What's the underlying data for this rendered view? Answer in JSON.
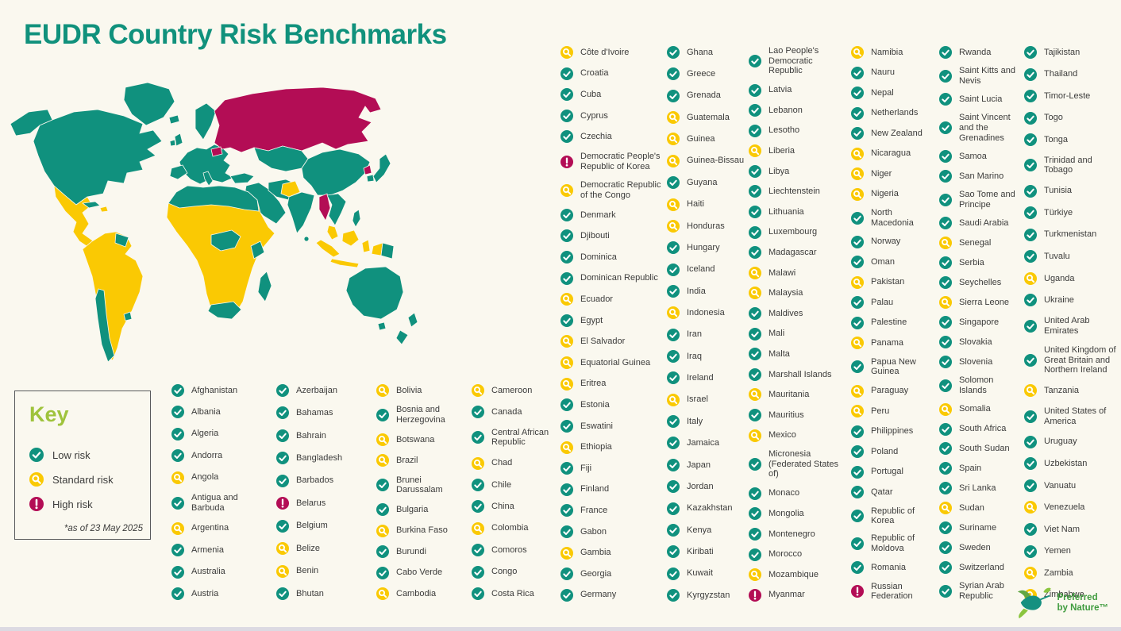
{
  "title": "EUDR Country Risk Benchmarks",
  "key": {
    "title": "Key",
    "items": [
      {
        "label": "Low risk",
        "risk": "low"
      },
      {
        "label": "Standard risk",
        "risk": "standard"
      },
      {
        "label": "High risk",
        "risk": "high"
      }
    ],
    "note": "*as of 23 May 2025"
  },
  "logo": {
    "line1": "Preferred",
    "line2": "by Nature™"
  },
  "colors": {
    "background": "#faf8ef",
    "title": "#10917c",
    "key_title": "#9fc33c",
    "low": "#10917e",
    "standard": "#fac903",
    "high": "#b30d55"
  },
  "chart_data": {
    "type": "choropleth_map",
    "title": "EUDR Country Risk Benchmarks",
    "note": "*as of 23 May 2025",
    "legend": [
      "Low risk",
      "Standard risk",
      "High risk"
    ],
    "legend_position": "bottom-left",
    "risk_colors": {
      "low": "#10917e",
      "standard": "#fac903",
      "high": "#b30d55"
    },
    "left_columns": [
      [
        {
          "name": "Afghanistan",
          "risk": "low"
        },
        {
          "name": "Albania",
          "risk": "low"
        },
        {
          "name": "Algeria",
          "risk": "low"
        },
        {
          "name": "Andorra",
          "risk": "low"
        },
        {
          "name": "Angola",
          "risk": "standard"
        },
        {
          "name": "Antigua and Barbuda",
          "risk": "low"
        },
        {
          "name": "Argentina",
          "risk": "standard"
        },
        {
          "name": "Armenia",
          "risk": "low"
        },
        {
          "name": "Australia",
          "risk": "low"
        },
        {
          "name": "Austria",
          "risk": "low"
        }
      ],
      [
        {
          "name": "Azerbaijan",
          "risk": "low"
        },
        {
          "name": "Bahamas",
          "risk": "low"
        },
        {
          "name": "Bahrain",
          "risk": "low"
        },
        {
          "name": "Bangladesh",
          "risk": "low"
        },
        {
          "name": "Barbados",
          "risk": "low"
        },
        {
          "name": "Belarus",
          "risk": "high"
        },
        {
          "name": "Belgium",
          "risk": "low"
        },
        {
          "name": "Belize",
          "risk": "standard"
        },
        {
          "name": "Benin",
          "risk": "standard"
        },
        {
          "name": "Bhutan",
          "risk": "low"
        }
      ],
      [
        {
          "name": "Bolivia",
          "risk": "standard"
        },
        {
          "name": "Bosnia and Herzegovina",
          "risk": "low"
        },
        {
          "name": "Botswana",
          "risk": "standard"
        },
        {
          "name": "Brazil",
          "risk": "standard"
        },
        {
          "name": "Brunei Darussalam",
          "risk": "low"
        },
        {
          "name": "Bulgaria",
          "risk": "low"
        },
        {
          "name": "Burkina Faso",
          "risk": "standard"
        },
        {
          "name": "Burundi",
          "risk": "low"
        },
        {
          "name": "Cabo Verde",
          "risk": "low"
        },
        {
          "name": "Cambodia",
          "risk": "standard"
        }
      ],
      [
        {
          "name": "Cameroon",
          "risk": "standard"
        },
        {
          "name": "Canada",
          "risk": "low"
        },
        {
          "name": "Central African Republic",
          "risk": "low"
        },
        {
          "name": "Chad",
          "risk": "standard"
        },
        {
          "name": "Chile",
          "risk": "low"
        },
        {
          "name": "China",
          "risk": "low"
        },
        {
          "name": "Colombia",
          "risk": "standard"
        },
        {
          "name": "Comoros",
          "risk": "low"
        },
        {
          "name": "Congo",
          "risk": "low"
        },
        {
          "name": "Costa Rica",
          "risk": "low"
        }
      ]
    ],
    "right_columns": [
      [
        {
          "name": "Côte d'Ivoire",
          "risk": "standard"
        },
        {
          "name": "Croatia",
          "risk": "low"
        },
        {
          "name": "Cuba",
          "risk": "low"
        },
        {
          "name": "Cyprus",
          "risk": "low"
        },
        {
          "name": "Czechia",
          "risk": "low"
        },
        {
          "name": "Democratic People's Republic of Korea",
          "risk": "high"
        },
        {
          "name": "Democratic Republic of the Congo",
          "risk": "standard"
        },
        {
          "name": "Denmark",
          "risk": "low"
        },
        {
          "name": "Djibouti",
          "risk": "low"
        },
        {
          "name": "Dominica",
          "risk": "low"
        },
        {
          "name": "Dominican Republic",
          "risk": "low"
        },
        {
          "name": "Ecuador",
          "risk": "standard"
        },
        {
          "name": "Egypt",
          "risk": "low"
        },
        {
          "name": "El Salvador",
          "risk": "standard"
        },
        {
          "name": "Equatorial Guinea",
          "risk": "standard"
        },
        {
          "name": "Eritrea",
          "risk": "standard"
        },
        {
          "name": "Estonia",
          "risk": "low"
        },
        {
          "name": "Eswatini",
          "risk": "low"
        },
        {
          "name": "Ethiopia",
          "risk": "standard"
        },
        {
          "name": "Fiji",
          "risk": "low"
        },
        {
          "name": "Finland",
          "risk": "low"
        },
        {
          "name": "France",
          "risk": "low"
        },
        {
          "name": "Gabon",
          "risk": "low"
        },
        {
          "name": "Gambia",
          "risk": "standard"
        },
        {
          "name": "Georgia",
          "risk": "low"
        },
        {
          "name": "Germany",
          "risk": "low"
        }
      ],
      [
        {
          "name": "Ghana",
          "risk": "low"
        },
        {
          "name": "Greece",
          "risk": "low"
        },
        {
          "name": "Grenada",
          "risk": "low"
        },
        {
          "name": "Guatemala",
          "risk": "standard"
        },
        {
          "name": "Guinea",
          "risk": "standard"
        },
        {
          "name": "Guinea-Bissau",
          "risk": "standard"
        },
        {
          "name": "Guyana",
          "risk": "low"
        },
        {
          "name": "Haiti",
          "risk": "standard"
        },
        {
          "name": "Honduras",
          "risk": "standard"
        },
        {
          "name": "Hungary",
          "risk": "low"
        },
        {
          "name": "Iceland",
          "risk": "low"
        },
        {
          "name": "India",
          "risk": "low"
        },
        {
          "name": "Indonesia",
          "risk": "standard"
        },
        {
          "name": "Iran",
          "risk": "low"
        },
        {
          "name": "Iraq",
          "risk": "low"
        },
        {
          "name": "Ireland",
          "risk": "low"
        },
        {
          "name": "Israel",
          "risk": "standard"
        },
        {
          "name": "Italy",
          "risk": "low"
        },
        {
          "name": "Jamaica",
          "risk": "low"
        },
        {
          "name": "Japan",
          "risk": "low"
        },
        {
          "name": "Jordan",
          "risk": "low"
        },
        {
          "name": "Kazakhstan",
          "risk": "low"
        },
        {
          "name": "Kenya",
          "risk": "low"
        },
        {
          "name": "Kiribati",
          "risk": "low"
        },
        {
          "name": "Kuwait",
          "risk": "low"
        },
        {
          "name": "Kyrgyzstan",
          "risk": "low"
        }
      ],
      [
        {
          "name": "Lao People's Democratic Republic",
          "risk": "low"
        },
        {
          "name": "Latvia",
          "risk": "low"
        },
        {
          "name": "Lebanon",
          "risk": "low"
        },
        {
          "name": "Lesotho",
          "risk": "low"
        },
        {
          "name": "Liberia",
          "risk": "standard"
        },
        {
          "name": "Libya",
          "risk": "low"
        },
        {
          "name": "Liechtenstein",
          "risk": "low"
        },
        {
          "name": "Lithuania",
          "risk": "low"
        },
        {
          "name": "Luxembourg",
          "risk": "low"
        },
        {
          "name": "Madagascar",
          "risk": "low"
        },
        {
          "name": "Malawi",
          "risk": "standard"
        },
        {
          "name": "Malaysia",
          "risk": "standard"
        },
        {
          "name": "Maldives",
          "risk": "low"
        },
        {
          "name": "Mali",
          "risk": "low"
        },
        {
          "name": "Malta",
          "risk": "low"
        },
        {
          "name": "Marshall Islands",
          "risk": "low"
        },
        {
          "name": "Mauritania",
          "risk": "standard"
        },
        {
          "name": "Mauritius",
          "risk": "low"
        },
        {
          "name": "Mexico",
          "risk": "standard"
        },
        {
          "name": "Micronesia (Federated States of)",
          "risk": "low"
        },
        {
          "name": "Monaco",
          "risk": "low"
        },
        {
          "name": "Mongolia",
          "risk": "low"
        },
        {
          "name": "Montenegro",
          "risk": "low"
        },
        {
          "name": "Morocco",
          "risk": "low"
        },
        {
          "name": "Mozambique",
          "risk": "standard"
        },
        {
          "name": "Myanmar",
          "risk": "high"
        }
      ],
      [
        {
          "name": "Namibia",
          "risk": "standard"
        },
        {
          "name": "Nauru",
          "risk": "low"
        },
        {
          "name": "Nepal",
          "risk": "low"
        },
        {
          "name": "Netherlands",
          "risk": "low"
        },
        {
          "name": "New Zealand",
          "risk": "low"
        },
        {
          "name": "Nicaragua",
          "risk": "standard"
        },
        {
          "name": "Niger",
          "risk": "standard"
        },
        {
          "name": "Nigeria",
          "risk": "standard"
        },
        {
          "name": "North Macedonia",
          "risk": "low"
        },
        {
          "name": "Norway",
          "risk": "low"
        },
        {
          "name": "Oman",
          "risk": "low"
        },
        {
          "name": "Pakistan",
          "risk": "standard"
        },
        {
          "name": "Palau",
          "risk": "low"
        },
        {
          "name": "Palestine",
          "risk": "low"
        },
        {
          "name": "Panama",
          "risk": "standard"
        },
        {
          "name": "Papua New Guinea",
          "risk": "low"
        },
        {
          "name": "Paraguay",
          "risk": "standard"
        },
        {
          "name": "Peru",
          "risk": "standard"
        },
        {
          "name": "Philippines",
          "risk": "low"
        },
        {
          "name": "Poland",
          "risk": "low"
        },
        {
          "name": "Portugal",
          "risk": "low"
        },
        {
          "name": "Qatar",
          "risk": "low"
        },
        {
          "name": "Republic of Korea",
          "risk": "low"
        },
        {
          "name": "Republic of Moldova",
          "risk": "low"
        },
        {
          "name": "Romania",
          "risk": "low"
        },
        {
          "name": "Russian Federation",
          "risk": "high"
        }
      ],
      [
        {
          "name": "Rwanda",
          "risk": "low"
        },
        {
          "name": "Saint Kitts and Nevis",
          "risk": "low"
        },
        {
          "name": "Saint Lucia",
          "risk": "low"
        },
        {
          "name": "Saint Vincent and the Grenadines",
          "risk": "low"
        },
        {
          "name": "Samoa",
          "risk": "low"
        },
        {
          "name": "San Marino",
          "risk": "low"
        },
        {
          "name": "Sao Tome and Principe",
          "risk": "low"
        },
        {
          "name": "Saudi Arabia",
          "risk": "low"
        },
        {
          "name": "Senegal",
          "risk": "standard"
        },
        {
          "name": "Serbia",
          "risk": "low"
        },
        {
          "name": "Seychelles",
          "risk": "low"
        },
        {
          "name": "Sierra Leone",
          "risk": "standard"
        },
        {
          "name": "Singapore",
          "risk": "low"
        },
        {
          "name": "Slovakia",
          "risk": "low"
        },
        {
          "name": "Slovenia",
          "risk": "low"
        },
        {
          "name": "Solomon Islands",
          "risk": "low"
        },
        {
          "name": "Somalia",
          "risk": "standard"
        },
        {
          "name": "South Africa",
          "risk": "low"
        },
        {
          "name": "South Sudan",
          "risk": "low"
        },
        {
          "name": "Spain",
          "risk": "low"
        },
        {
          "name": "Sri Lanka",
          "risk": "low"
        },
        {
          "name": "Sudan",
          "risk": "standard"
        },
        {
          "name": "Suriname",
          "risk": "low"
        },
        {
          "name": "Sweden",
          "risk": "low"
        },
        {
          "name": "Switzerland",
          "risk": "low"
        },
        {
          "name": "Syrian Arab Republic",
          "risk": "low"
        }
      ],
      [
        {
          "name": "Tajikistan",
          "risk": "low"
        },
        {
          "name": "Thailand",
          "risk": "low"
        },
        {
          "name": "Timor-Leste",
          "risk": "low"
        },
        {
          "name": "Togo",
          "risk": "low"
        },
        {
          "name": "Tonga",
          "risk": "low"
        },
        {
          "name": "Trinidad and Tobago",
          "risk": "low"
        },
        {
          "name": "Tunisia",
          "risk": "low"
        },
        {
          "name": "Türkiye",
          "risk": "low"
        },
        {
          "name": "Turkmenistan",
          "risk": "low"
        },
        {
          "name": "Tuvalu",
          "risk": "low"
        },
        {
          "name": "Uganda",
          "risk": "standard"
        },
        {
          "name": "Ukraine",
          "risk": "low"
        },
        {
          "name": "United Arab Emirates",
          "risk": "low"
        },
        {
          "name": "United Kingdom of Great Britain and Northern Ireland",
          "risk": "low"
        },
        {
          "name": "Tanzania",
          "risk": "standard"
        },
        {
          "name": "United States of America",
          "risk": "low"
        },
        {
          "name": "Uruguay",
          "risk": "low"
        },
        {
          "name": "Uzbekistan",
          "risk": "low"
        },
        {
          "name": "Vanuatu",
          "risk": "low"
        },
        {
          "name": "Venezuela",
          "risk": "standard"
        },
        {
          "name": "Viet Nam",
          "risk": "low"
        },
        {
          "name": "Yemen",
          "risk": "low"
        },
        {
          "name": "Zambia",
          "risk": "standard"
        },
        {
          "name": "Zimbabwe",
          "risk": "standard"
        }
      ]
    ]
  }
}
